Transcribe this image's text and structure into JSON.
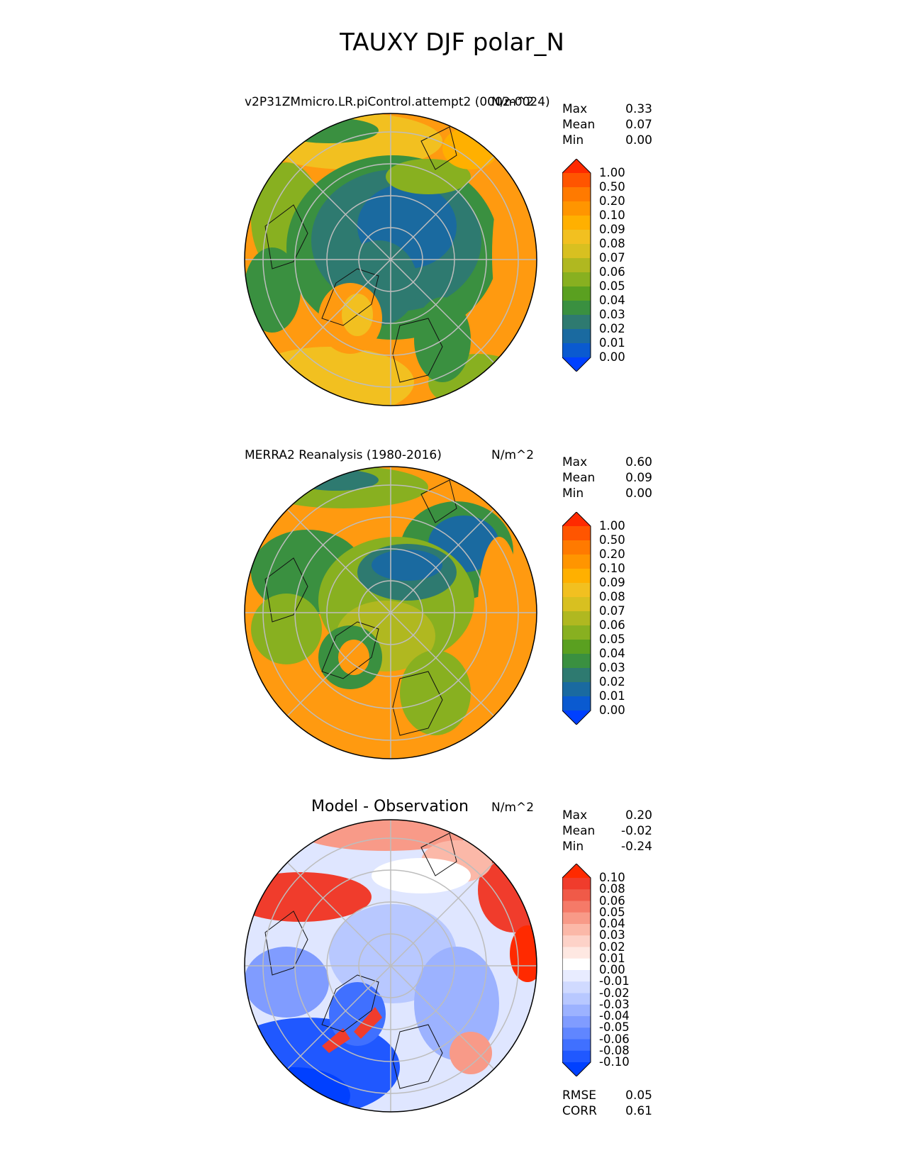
{
  "title": "TAUXY DJF polar_N",
  "panels": [
    {
      "title": "v2P31ZMmicro.LR.piControl.attempt2 (0002-0024)",
      "title_style": "left",
      "units": "N/m^2",
      "stats": [
        {
          "label": "Max",
          "value": "0.33"
        },
        {
          "label": "Mean",
          "value": "0.07"
        },
        {
          "label": "Min",
          "value": "0.00"
        }
      ],
      "colorbar": {
        "labels": [
          "1.00",
          "0.50",
          "0.20",
          "0.10",
          "0.09",
          "0.08",
          "0.07",
          "0.06",
          "0.05",
          "0.04",
          "0.03",
          "0.02",
          "0.01",
          "0.00"
        ],
        "colors": [
          "#ff2a00",
          "#ff5500",
          "#ff7a00",
          "#ff9500",
          "#ffb000",
          "#f2c020",
          "#d8c020",
          "#b0b820",
          "#88b020",
          "#5aa020",
          "#3a9040",
          "#2e7a70",
          "#1a6aa0",
          "#0a5ad0",
          "#0040ff"
        ]
      }
    },
    {
      "title": "MERRA2 Reanalysis (1980-2016)",
      "title_style": "left",
      "units": "N/m^2",
      "stats": [
        {
          "label": "Max",
          "value": "0.60"
        },
        {
          "label": "Mean",
          "value": "0.09"
        },
        {
          "label": "Min",
          "value": "0.00"
        }
      ],
      "colorbar": {
        "labels": [
          "1.00",
          "0.50",
          "0.20",
          "0.10",
          "0.09",
          "0.08",
          "0.07",
          "0.06",
          "0.05",
          "0.04",
          "0.03",
          "0.02",
          "0.01",
          "0.00"
        ],
        "colors": [
          "#ff2a00",
          "#ff5500",
          "#ff7a00",
          "#ff9500",
          "#ffb000",
          "#f2c020",
          "#d8c020",
          "#b0b820",
          "#88b020",
          "#5aa020",
          "#3a9040",
          "#2e7a70",
          "#1a6aa0",
          "#0a5ad0",
          "#0040ff"
        ]
      }
    },
    {
      "title": "Model - Observation",
      "title_style": "center",
      "units": "N/m^2",
      "stats": [
        {
          "label": "Max",
          "value": "0.20"
        },
        {
          "label": "Mean",
          "value": "-0.02"
        },
        {
          "label": "Min",
          "value": "-0.24"
        }
      ],
      "extra_stats": [
        {
          "label": "RMSE",
          "value": "0.05"
        },
        {
          "label": "CORR",
          "value": "0.61"
        }
      ],
      "colorbar": {
        "labels": [
          "0.10",
          "0.08",
          "0.06",
          "0.05",
          "0.04",
          "0.03",
          "0.02",
          "0.01",
          "0.00",
          "-0.01",
          "-0.02",
          "-0.03",
          "-0.04",
          "-0.05",
          "-0.06",
          "-0.08",
          "-0.10"
        ],
        "colors": [
          "#ff2a00",
          "#f03c2c",
          "#f05a48",
          "#f57a68",
          "#f89a88",
          "#fbb8a8",
          "#fdd2c8",
          "#fee8e2",
          "#ffffff",
          "#e8ecff",
          "#d0daff",
          "#b8c8ff",
          "#9cb2ff",
          "#809cff",
          "#6086ff",
          "#4070ff",
          "#2058ff",
          "#0040ff"
        ]
      }
    }
  ],
  "colors": {
    "obs_background": "#ff9a10",
    "model_background": "#ff9a10",
    "diff_background": "#dfe6ff"
  }
}
